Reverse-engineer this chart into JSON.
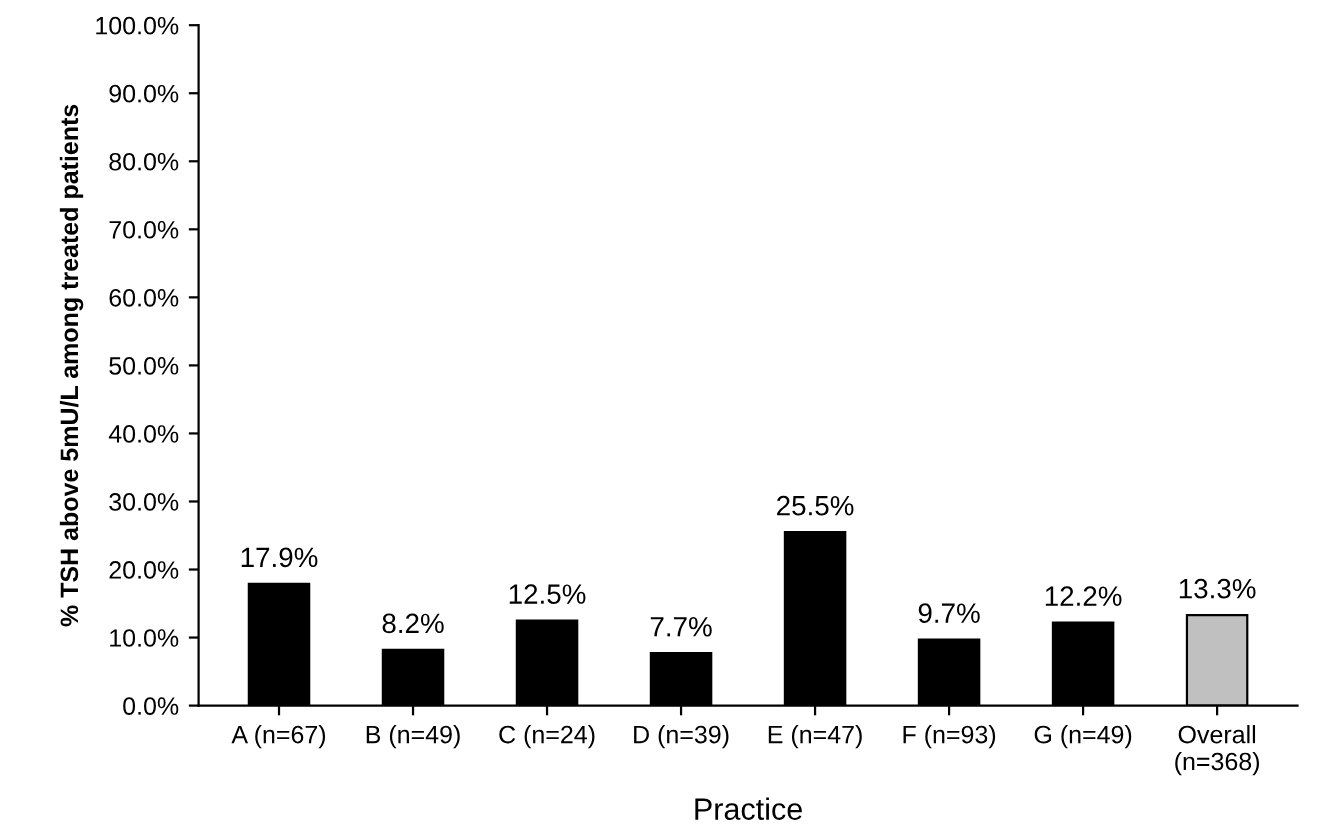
{
  "chart_data": {
    "type": "bar",
    "xlabel": "Practice",
    "ylabel": "% TSH above 5mU/L among treated patients",
    "categories": [
      "A (n=67)",
      "B (n=49)",
      "C (n=24)",
      "D (n=39)",
      "E (n=47)",
      "F (n=93)",
      "G (n=49)",
      "Overall\n(n=368)"
    ],
    "values": [
      17.9,
      8.2,
      12.5,
      7.7,
      25.5,
      9.7,
      12.2,
      13.3
    ],
    "colors": [
      "#000000",
      "#000000",
      "#000000",
      "#000000",
      "#000000",
      "#000000",
      "#000000",
      "#c0c0c0"
    ],
    "value_labels": [
      "17.9%",
      "8.2%",
      "12.5%",
      "7.7%",
      "25.5%",
      "9.7%",
      "12.2%",
      "13.3%"
    ],
    "ylim": [
      0,
      100
    ],
    "yticks": [
      {
        "value": 0,
        "label": "0.0%"
      },
      {
        "value": 10,
        "label": "10.0%"
      },
      {
        "value": 20,
        "label": "20.0%"
      },
      {
        "value": 30,
        "label": "30.0%"
      },
      {
        "value": 40,
        "label": "40.0%"
      },
      {
        "value": 50,
        "label": "50.0%"
      },
      {
        "value": 60,
        "label": "60.0%"
      },
      {
        "value": 70,
        "label": "70.0%"
      },
      {
        "value": 80,
        "label": "80.0%"
      },
      {
        "value": 90,
        "label": "90.0%"
      },
      {
        "value": 100,
        "label": "100.0%"
      }
    ],
    "grid": false
  }
}
